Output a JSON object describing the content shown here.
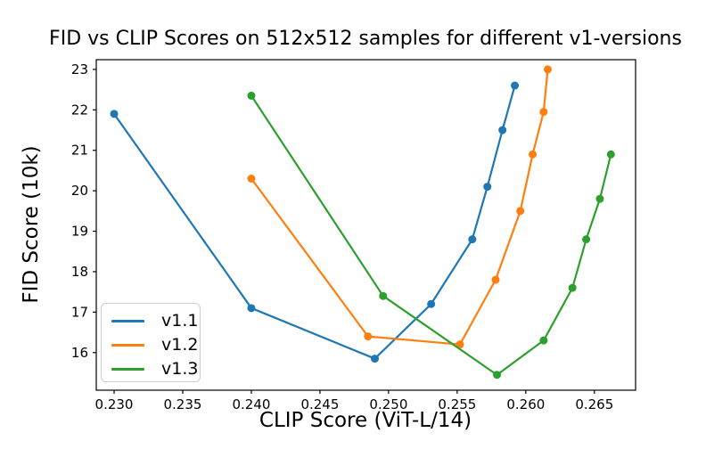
{
  "chart_data": {
    "type": "line",
    "title": "FID vs CLIP Scores on 512x512 samples for different v1-versions",
    "xlabel": "CLIP Score (ViT-L/14)",
    "ylabel": "FID Score (10k)",
    "xlim": [
      0.2287,
      0.268
    ],
    "ylim": [
      15.07,
      23.24
    ],
    "x_ticks": [
      "0.230",
      "0.235",
      "0.240",
      "0.245",
      "0.250",
      "0.255",
      "0.260",
      "0.265"
    ],
    "y_ticks": [
      "16",
      "17",
      "18",
      "19",
      "20",
      "21",
      "22",
      "23"
    ],
    "grid": false,
    "marker": "circle",
    "legend_position": "lower left",
    "axis_color": "#000000",
    "series": [
      {
        "name": "v1.1",
        "color": "#1f77b4",
        "x": [
          0.23,
          0.24,
          0.249,
          0.2531,
          0.2561,
          0.2572,
          0.2583,
          0.2592
        ],
        "y": [
          21.9,
          17.1,
          15.85,
          17.2,
          18.8,
          20.1,
          21.5,
          22.6
        ]
      },
      {
        "name": "v1.2",
        "color": "#ff7f0e",
        "x": [
          0.24,
          0.2485,
          0.2552,
          0.2578,
          0.2596,
          0.2605,
          0.2613,
          0.2616
        ],
        "y": [
          20.3,
          16.4,
          16.2,
          17.8,
          19.5,
          20.9,
          21.95,
          23.0
        ]
      },
      {
        "name": "v1.3",
        "color": "#2ca02c",
        "x": [
          0.24,
          0.2496,
          0.2579,
          0.2613,
          0.2634,
          0.2644,
          0.2654,
          0.2662
        ],
        "y": [
          22.35,
          17.4,
          15.45,
          16.3,
          17.6,
          18.8,
          19.8,
          20.9
        ]
      }
    ]
  }
}
